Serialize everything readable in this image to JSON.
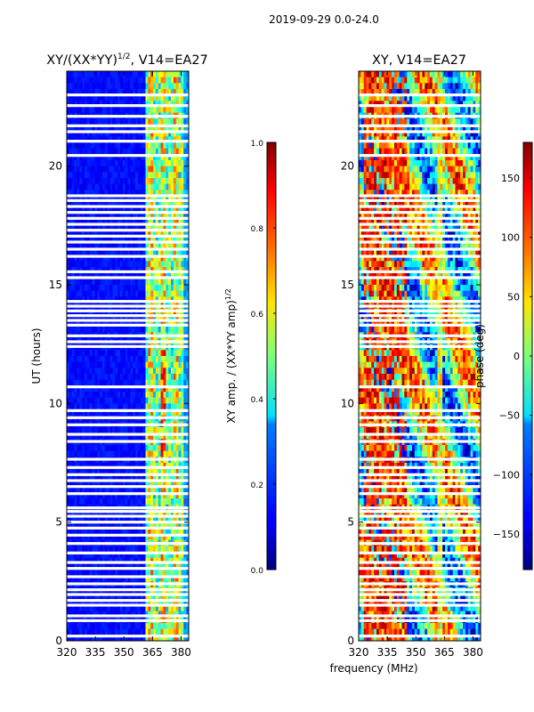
{
  "figure": {
    "suptitle": "2019-09-29 0.0-24.0",
    "shared_xlabel": "frequency (MHz)"
  },
  "chart_data": [
    {
      "type": "heatmap",
      "title": "XY/(XX*YY)",
      "title_sup": "1/2",
      "title_suffix": ", V14=EA27",
      "xlabel": "",
      "ylabel": "UT (hours)",
      "xlim": [
        320,
        384
      ],
      "ylim": [
        0,
        24
      ],
      "xticks": [
        320,
        335,
        350,
        365,
        380
      ],
      "yticks": [
        0,
        5,
        10,
        15,
        20
      ],
      "blank_rows_hours": [
        0.2,
        0.85,
        1.05,
        1.5,
        1.7,
        1.95,
        2.15,
        2.4,
        2.7,
        3.05,
        3.3,
        3.7,
        4.1,
        4.45,
        4.75,
        5.0,
        5.25,
        5.45,
        5.6,
        6.2,
        6.5,
        6.75,
        7.0,
        7.3,
        7.65,
        8.4,
        8.7,
        9.1,
        9.4,
        9.7,
        10.7,
        12.4,
        12.6,
        12.85,
        13.3,
        13.5,
        13.7,
        13.9,
        14.1,
        14.3,
        15.3,
        15.55,
        16.2,
        16.5,
        16.8,
        17.05,
        17.3,
        17.55,
        17.8,
        18.05,
        18.3,
        18.55,
        18.75,
        20.45,
        21.05,
        21.45,
        21.7,
        22.1,
        22.55,
        23.0
      ]
    },
    {
      "type": "heatmap",
      "title": "XY, V14=EA27",
      "xlabel": "frequency (MHz)",
      "ylabel": "",
      "xlim": [
        320,
        384
      ],
      "ylim": [
        0,
        24
      ],
      "xticks": [
        320,
        335,
        350,
        365,
        380
      ],
      "yticks": [
        0,
        5,
        10,
        15,
        20
      ],
      "blank_rows_hours": [
        0.2,
        0.85,
        1.05,
        1.5,
        1.7,
        1.95,
        2.15,
        2.4,
        2.7,
        3.05,
        3.3,
        3.7,
        4.1,
        4.45,
        4.75,
        5.0,
        5.25,
        5.45,
        5.6,
        6.2,
        6.5,
        6.75,
        7.0,
        7.3,
        7.65,
        8.4,
        8.7,
        9.1,
        9.4,
        9.7,
        10.7,
        12.4,
        12.6,
        12.85,
        13.3,
        13.5,
        13.7,
        13.9,
        14.1,
        14.3,
        15.3,
        15.55,
        16.2,
        16.5,
        16.8,
        17.05,
        17.3,
        17.55,
        17.8,
        18.05,
        18.3,
        18.55,
        18.75,
        20.45,
        21.05,
        21.45,
        21.7,
        22.1,
        22.55,
        23.0
      ]
    }
  ],
  "colorbars": [
    {
      "label": "XY amp. / (XX*YY amp)",
      "label_sup": "1/2",
      "range": [
        0.0,
        1.0
      ],
      "ticks": [
        "1.0",
        "0.8",
        "0.6",
        "0.4",
        "0.2",
        "0.0"
      ],
      "tick_values": [
        1.0,
        0.8,
        0.6,
        0.4,
        0.2,
        0.0
      ]
    },
    {
      "label": "phase (deg)",
      "range": [
        -180,
        180
      ],
      "ticks": [
        "150",
        "100",
        "50",
        "0",
        "−50",
        "−100",
        "−150"
      ],
      "tick_values": [
        150,
        100,
        50,
        0,
        -50,
        -100,
        -150
      ]
    }
  ],
  "colormap": "jet"
}
